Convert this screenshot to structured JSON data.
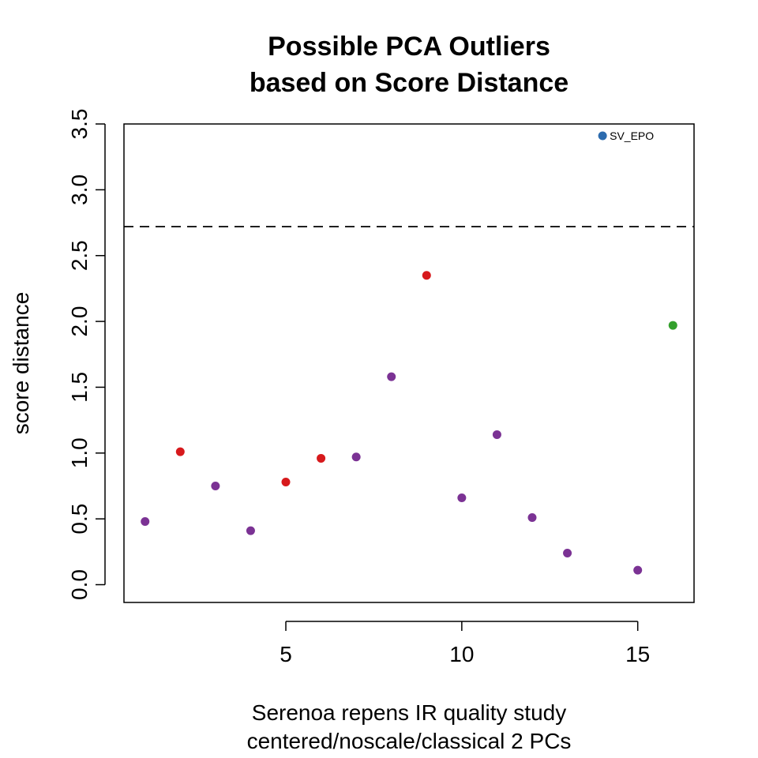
{
  "chart_data": {
    "type": "scatter",
    "title": [
      "Possible PCA Outliers",
      "based on Score Distance"
    ],
    "xlabel": [
      "Serenoa repens IR quality study",
      "centered/noscale/classical 2 PCs"
    ],
    "ylabel": "score distance",
    "xlim": [
      0.4,
      16.6
    ],
    "ylim": [
      -0.135,
      3.5
    ],
    "x_ticks": [
      5,
      10,
      15
    ],
    "y_ticks": [
      0.0,
      0.5,
      1.0,
      1.5,
      2.0,
      2.5,
      3.0,
      3.5
    ],
    "x_tick_labels": [
      "5",
      "10",
      "15"
    ],
    "y_tick_labels": [
      "0.0",
      "0.5",
      "1.0",
      "1.5",
      "2.0",
      "2.5",
      "3.0",
      "3.5"
    ],
    "threshold": 2.72,
    "grid": false,
    "points": [
      {
        "x": 1,
        "y": 0.48,
        "color": "#7B3294"
      },
      {
        "x": 2,
        "y": 1.01,
        "color": "#D7191C"
      },
      {
        "x": 3,
        "y": 0.75,
        "color": "#7B3294"
      },
      {
        "x": 4,
        "y": 0.41,
        "color": "#7B3294"
      },
      {
        "x": 5,
        "y": 0.78,
        "color": "#D7191C"
      },
      {
        "x": 6,
        "y": 0.96,
        "color": "#D7191C"
      },
      {
        "x": 7,
        "y": 0.97,
        "color": "#7B3294"
      },
      {
        "x": 8,
        "y": 1.58,
        "color": "#7B3294"
      },
      {
        "x": 9,
        "y": 2.35,
        "color": "#D7191C"
      },
      {
        "x": 10,
        "y": 0.66,
        "color": "#7B3294"
      },
      {
        "x": 11,
        "y": 1.14,
        "color": "#7B3294"
      },
      {
        "x": 12,
        "y": 0.51,
        "color": "#7B3294"
      },
      {
        "x": 13,
        "y": 0.24,
        "color": "#7B3294"
      },
      {
        "x": 14,
        "y": 3.41,
        "color": "#2C6BAE",
        "label": "SV_EPO"
      },
      {
        "x": 15,
        "y": 0.11,
        "color": "#7B3294"
      },
      {
        "x": 16,
        "y": 1.97,
        "color": "#33A02C"
      }
    ]
  }
}
